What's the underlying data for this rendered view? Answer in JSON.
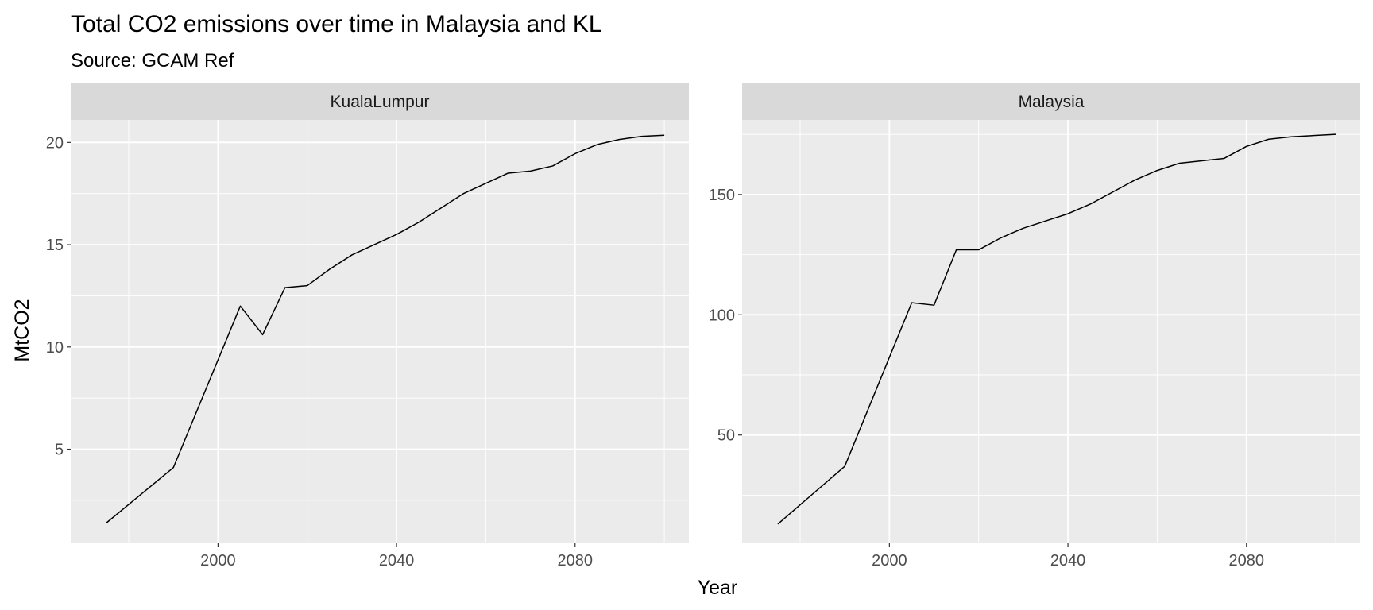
{
  "chart_data": {
    "type": "line",
    "title": "Total CO2 emissions over time in Malaysia and KL",
    "subtitle": "Source: GCAM Ref",
    "xlabel": "Year",
    "ylabel": "MtCO2",
    "x": [
      1975,
      1990,
      2005,
      2010,
      2015,
      2020,
      2025,
      2030,
      2035,
      2040,
      2045,
      2050,
      2055,
      2060,
      2065,
      2070,
      2075,
      2080,
      2085,
      2090,
      2095,
      2100
    ],
    "panels": [
      {
        "strip": "KualaLumpur",
        "xlim": [
          1967,
          2105.5
        ],
        "ylim": [
          0.4,
          21.1
        ],
        "xticks": [
          2000,
          2040,
          2080
        ],
        "yticks": [
          5,
          10,
          15,
          20
        ],
        "values": [
          1.4,
          4.1,
          12.0,
          10.6,
          12.9,
          13.0,
          13.8,
          14.5,
          15.0,
          15.5,
          16.1,
          16.8,
          17.5,
          18.0,
          18.5,
          18.6,
          18.85,
          19.45,
          19.9,
          20.15,
          20.3,
          20.35
        ]
      },
      {
        "strip": "Malaysia",
        "xlim": [
          1967,
          2105.5
        ],
        "ylim": [
          5,
          181
        ],
        "xticks": [
          2000,
          2040,
          2080
        ],
        "yticks": [
          50,
          100,
          150
        ],
        "values": [
          13,
          37,
          105,
          104,
          127,
          127,
          132,
          136,
          139,
          142,
          146,
          151,
          156,
          160,
          163,
          164,
          165,
          170,
          173,
          174,
          174.5,
          175
        ]
      }
    ],
    "grid": true,
    "legend": "none"
  }
}
